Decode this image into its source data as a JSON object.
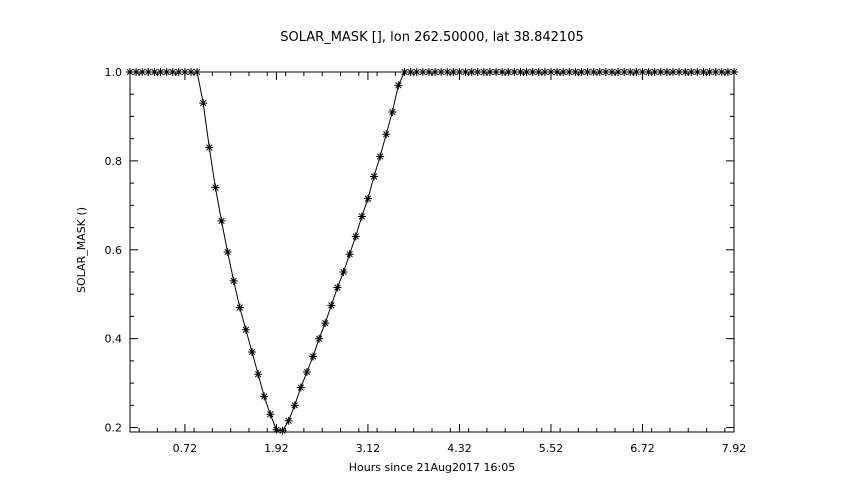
{
  "chart_data": {
    "type": "line",
    "title": "SOLAR_MASK [], lon 262.50000, lat 38.842105",
    "xlabel": "Hours since 21Aug2017 16:05",
    "ylabel": "SOLAR_MASK ()",
    "xlim": [
      0.0,
      7.92
    ],
    "ylim": [
      0.19,
      1.0
    ],
    "x_ticks": [
      0.72,
      1.92,
      3.12,
      4.32,
      5.52,
      6.72,
      7.92
    ],
    "x_tick_labels": [
      "0.72",
      "1.92",
      "3.12",
      "4.32",
      "5.52",
      "6.72",
      "7.92"
    ],
    "y_ticks": [
      0.2,
      0.4,
      0.6,
      0.8,
      1.0
    ],
    "y_tick_labels": [
      "0.2",
      "0.4",
      "0.6",
      "0.8",
      "1.0"
    ],
    "marker": "asterisk",
    "grid": false,
    "series": [
      {
        "x": [
          0.0,
          0.08,
          0.16,
          0.24,
          0.32,
          0.4,
          0.48,
          0.56,
          0.64,
          0.72,
          0.8,
          0.88,
          0.96,
          1.04,
          1.12,
          1.2,
          1.28,
          1.36,
          1.44,
          1.52,
          1.6,
          1.68,
          1.76,
          1.84,
          1.92,
          2.0,
          2.08,
          2.16,
          2.24,
          2.32,
          2.4,
          2.48,
          2.56,
          2.64,
          2.72,
          2.8,
          2.88,
          2.96,
          3.04,
          3.12,
          3.2,
          3.28,
          3.36,
          3.44,
          3.52,
          3.6,
          3.68,
          3.76,
          3.84,
          3.92,
          4.0,
          4.08,
          4.16,
          4.24,
          4.32,
          4.4,
          4.48,
          4.56,
          4.64,
          4.72,
          4.8,
          4.88,
          4.96,
          5.04,
          5.12,
          5.2,
          5.28,
          5.36,
          5.44,
          5.52,
          5.6,
          5.68,
          5.76,
          5.84,
          5.92,
          6.0,
          6.08,
          6.16,
          6.24,
          6.32,
          6.4,
          6.48,
          6.56,
          6.64,
          6.72,
          6.8,
          6.88,
          6.96,
          7.04,
          7.12,
          7.2,
          7.28,
          7.36,
          7.44,
          7.52,
          7.6,
          7.68,
          7.76,
          7.84,
          7.92
        ],
        "y": [
          1.0,
          1.0,
          1.0,
          1.0,
          1.0,
          1.0,
          1.0,
          1.0,
          1.0,
          1.0,
          1.0,
          1.0,
          0.93,
          0.83,
          0.74,
          0.665,
          0.595,
          0.53,
          0.47,
          0.42,
          0.37,
          0.32,
          0.27,
          0.23,
          0.195,
          0.193,
          0.215,
          0.25,
          0.29,
          0.325,
          0.36,
          0.4,
          0.435,
          0.475,
          0.515,
          0.55,
          0.59,
          0.63,
          0.675,
          0.715,
          0.765,
          0.81,
          0.86,
          0.91,
          0.97,
          1.0,
          1.0,
          1.0,
          1.0,
          1.0,
          1.0,
          1.0,
          1.0,
          1.0,
          1.0,
          1.0,
          1.0,
          1.0,
          1.0,
          1.0,
          1.0,
          1.0,
          1.0,
          1.0,
          1.0,
          1.0,
          1.0,
          1.0,
          1.0,
          1.0,
          1.0,
          1.0,
          1.0,
          1.0,
          1.0,
          1.0,
          1.0,
          1.0,
          1.0,
          1.0,
          1.0,
          1.0,
          1.0,
          1.0,
          1.0,
          1.0,
          1.0,
          1.0,
          1.0,
          1.0,
          1.0,
          1.0,
          1.0,
          1.0,
          1.0,
          1.0,
          1.0,
          1.0,
          1.0,
          1.0
        ]
      }
    ]
  }
}
